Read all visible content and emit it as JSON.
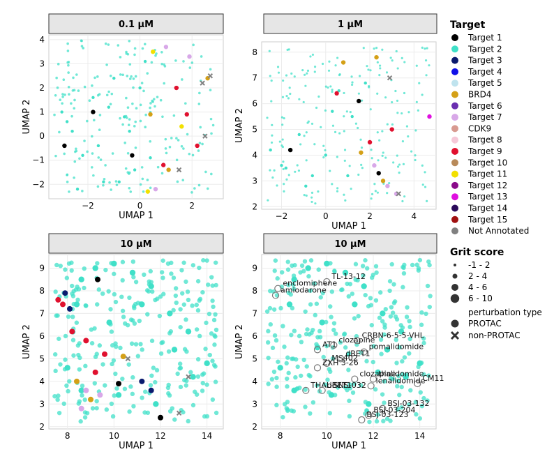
{
  "legend": {
    "target_title": "Target",
    "targets": [
      {
        "label": "Target 1",
        "color": "#000000"
      },
      {
        "label": "Target 2",
        "color": "#40E0C8"
      },
      {
        "label": "Target 3",
        "color": "#0A1A6E"
      },
      {
        "label": "Target 4",
        "color": "#1010E8"
      },
      {
        "label": "Target 5",
        "color": "#BFE3EE"
      },
      {
        "label": "BRD4",
        "color": "#D4A017"
      },
      {
        "label": "Target 6",
        "color": "#6A2FB0"
      },
      {
        "label": "Target 7",
        "color": "#D8A8E8"
      },
      {
        "label": "CDK9",
        "color": "#D89A90"
      },
      {
        "label": "Target 8",
        "color": "#F6C8D8"
      },
      {
        "label": "Target 9",
        "color": "#E0102E"
      },
      {
        "label": "Target 10",
        "color": "#B88A5A"
      },
      {
        "label": "Target 11",
        "color": "#F2E000"
      },
      {
        "label": "Target 12",
        "color": "#8A0A8A"
      },
      {
        "label": "Target 13",
        "color": "#E010E0"
      },
      {
        "label": "Target 14",
        "color": "#2A0A5A"
      },
      {
        "label": "Target 15",
        "color": "#A01010"
      },
      {
        "label": "Not Annotated",
        "color": "#808080"
      }
    ],
    "grit_title": "Grit score",
    "grit_levels": [
      "-1 - 2",
      "2 - 4",
      "4 - 6",
      "6 - 10"
    ],
    "ptype_title": "perturbation type",
    "ptypes": [
      "PROTAC",
      "non-PROTAC"
    ]
  },
  "chart_data": [
    {
      "type": "scatter",
      "title": "0.1 µM",
      "xlabel": "UMAP 1",
      "ylabel": "UMAP 2",
      "xlim": [
        -3.5,
        3.2
      ],
      "ylim": [
        -2.6,
        4.2
      ],
      "xticks": [
        -2,
        0,
        2
      ],
      "yticks": [
        -2,
        -1,
        0,
        1,
        2,
        3,
        4
      ],
      "series": [
        {
          "name": "Target 2",
          "x": [
            -3.0,
            -2.6,
            -2.2,
            -1.8,
            -1.4,
            -1.0,
            -0.6,
            -0.2,
            0.2,
            -2.4,
            -1.6,
            -0.8,
            0.0,
            -2.8,
            -1.2,
            -0.4,
            0.4
          ],
          "y": [
            1.0,
            0.2,
            -0.8,
            1.6,
            -1.9,
            2.4,
            0.8,
            -1.4,
            3.1,
            -2.2,
            -0.4,
            -1.9,
            2.0,
            0.6,
            1.2,
            0.2,
            -0.9
          ]
        },
        {
          "name": "Target 1",
          "x": [
            -1.8,
            -0.3,
            -2.9
          ],
          "y": [
            1.0,
            -0.8,
            -0.4
          ]
        },
        {
          "name": "Target 9",
          "x": [
            1.4,
            2.2,
            0.9,
            1.8
          ],
          "y": [
            2.0,
            -0.4,
            -1.2,
            0.9
          ]
        },
        {
          "name": "BRD4",
          "x": [
            0.4,
            2.6,
            1.1
          ],
          "y": [
            0.9,
            2.4,
            -1.4
          ]
        },
        {
          "name": "Target 7",
          "x": [
            1.0,
            1.9,
            0.6
          ],
          "y": [
            3.7,
            3.3,
            -2.2
          ]
        },
        {
          "name": "Target 11",
          "x": [
            0.3,
            1.6,
            0.5
          ],
          "y": [
            -2.3,
            0.4,
            3.5
          ]
        },
        {
          "name": "Not Annotated",
          "x": [
            2.4,
            2.5,
            2.7,
            1.5
          ],
          "y": [
            2.2,
            0.0,
            2.5,
            -1.4
          ]
        }
      ]
    },
    {
      "type": "scatter",
      "title": "1 µM",
      "xlabel": "UMAP 1",
      "ylabel": "UMAP 2",
      "xlim": [
        -2.9,
        5.0
      ],
      "ylim": [
        1.9,
        8.4
      ],
      "xticks": [
        -2,
        0,
        2,
        4
      ],
      "yticks": [
        2,
        3,
        4,
        5,
        6,
        7,
        8
      ],
      "series": [
        {
          "name": "Target 2",
          "x": [
            -2.5,
            -1.8,
            -1.2,
            -0.6,
            0.0,
            0.6,
            1.2,
            -2.0,
            -0.9,
            0.3,
            1.0,
            1.8
          ],
          "y": [
            4.2,
            3.5,
            4.8,
            3.2,
            4.0,
            6.5,
            5.5,
            3.6,
            2.8,
            5.7,
            3.2,
            6.8
          ],
          "size": "small"
        },
        {
          "name": "Target 1",
          "x": [
            -1.6,
            2.4,
            1.5
          ],
          "y": [
            4.2,
            3.3,
            6.1
          ]
        },
        {
          "name": "Target 13",
          "x": [
            4.7
          ],
          "y": [
            5.5
          ]
        },
        {
          "name": "BRD4",
          "x": [
            0.8,
            2.3,
            2.6,
            1.6
          ],
          "y": [
            7.6,
            7.8,
            3.0,
            4.1
          ]
        },
        {
          "name": "Target 7",
          "x": [
            2.8,
            3.2,
            2.2
          ],
          "y": [
            2.8,
            2.5,
            3.6
          ]
        },
        {
          "name": "Target 9",
          "x": [
            0.5,
            2.0,
            3.0
          ],
          "y": [
            6.4,
            4.5,
            5.0
          ]
        },
        {
          "name": "Not Annotated",
          "x": [
            3.3,
            2.9
          ],
          "y": [
            2.5,
            7.0
          ]
        }
      ]
    },
    {
      "type": "scatter",
      "title": "10 µM",
      "xlabel": "UMAP 1",
      "ylabel": "UMAP 2",
      "xlim": [
        7.2,
        14.7
      ],
      "ylim": [
        1.9,
        9.6
      ],
      "xticks": [
        8,
        10,
        12,
        14
      ],
      "yticks": [
        2,
        3,
        4,
        5,
        6,
        7,
        8,
        9
      ],
      "series": [
        {
          "name": "Target 2",
          "x": [
            8.6,
            9.2,
            10.0,
            10.8,
            11.6,
            12.4,
            13.2,
            14.0,
            8.4,
            9.8,
            11.2,
            12.6,
            8.0,
            8.6,
            10.2,
            11.8,
            13.4
          ],
          "y": [
            8.5,
            9.0,
            9.2,
            8.8,
            8.2,
            7.0,
            6.2,
            4.8,
            7.4,
            6.6,
            7.4,
            5.4,
            4.6,
            3.6,
            3.4,
            3.0,
            4.2
          ]
        },
        {
          "name": "Target 9",
          "x": [
            7.6,
            8.2,
            8.8,
            9.6,
            9.2,
            7.8
          ],
          "y": [
            7.6,
            6.2,
            5.8,
            5.2,
            4.4,
            7.4
          ]
        },
        {
          "name": "Target 3",
          "x": [
            7.9,
            8.1,
            11.2,
            11.6
          ],
          "y": [
            7.9,
            7.2,
            4.0,
            3.6
          ]
        },
        {
          "name": "BRD4",
          "x": [
            8.4,
            9.0,
            10.4
          ],
          "y": [
            4.0,
            3.2,
            5.1
          ]
        },
        {
          "name": "Target 7",
          "x": [
            8.6,
            9.4,
            8.8
          ],
          "y": [
            2.8,
            3.4,
            3.6
          ]
        },
        {
          "name": "Target 1",
          "x": [
            9.3,
            12.0,
            10.2
          ],
          "y": [
            8.5,
            2.4,
            3.9
          ]
        },
        {
          "name": "Not Annotated",
          "x": [
            13.2,
            10.6,
            12.8
          ],
          "y": [
            4.2,
            5.0,
            2.6
          ]
        }
      ]
    },
    {
      "type": "scatter",
      "title": "10 µM",
      "xlabel": "UMAP 1",
      "ylabel": "UMAP 2",
      "xlim": [
        7.2,
        14.7
      ],
      "ylim": [
        1.9,
        9.6
      ],
      "xticks": [
        8,
        10,
        12,
        14
      ],
      "yticks": [
        2,
        3,
        4,
        5,
        6,
        7,
        8,
        9
      ],
      "series": [
        {
          "name": "Target 2",
          "x": [
            8.6,
            9.2,
            10.0,
            10.8,
            11.6,
            12.4,
            13.2,
            14.0,
            8.4,
            9.8,
            11.2,
            12.6,
            8.0,
            8.6,
            10.2,
            11.8,
            13.4,
            9.6,
            12.2
          ],
          "y": [
            8.5,
            9.0,
            9.2,
            8.8,
            8.2,
            7.0,
            6.2,
            4.8,
            7.4,
            6.6,
            7.4,
            5.4,
            4.6,
            3.6,
            3.4,
            3.0,
            4.2,
            5.5,
            4.4
          ]
        }
      ],
      "annotations": [
        {
          "label": "TL-13-12",
          "x": 10.0,
          "y": 8.4
        },
        {
          "label": "enclomiphene",
          "x": 7.9,
          "y": 8.1
        },
        {
          "label": "amiodarone",
          "x": 7.8,
          "y": 7.8
        },
        {
          "label": "CRBN-6-5-5-VHL",
          "x": 11.3,
          "y": 5.8
        },
        {
          "label": "clozapine",
          "x": 10.3,
          "y": 5.6
        },
        {
          "label": "AT1",
          "x": 9.6,
          "y": 5.4
        },
        {
          "label": "pomalidomide",
          "x": 11.6,
          "y": 5.3
        },
        {
          "label": "MS402",
          "x": 10.0,
          "y": 4.8
        },
        {
          "label": "dBET1",
          "x": 10.6,
          "y": 5.0
        },
        {
          "label": "ZXH 3-26",
          "x": 9.6,
          "y": 4.6
        },
        {
          "label": "thalidomide",
          "x": 12.0,
          "y": 4.1
        },
        {
          "label": "THAL-SNS-032",
          "x": 9.1,
          "y": 3.6
        },
        {
          "label": "clozapine",
          "x": 11.2,
          "y": 4.1
        },
        {
          "label": "CM11",
          "x": 13.9,
          "y": 3.9
        },
        {
          "label": "lenalidomide",
          "x": 11.9,
          "y": 3.8
        },
        {
          "label": "dBET1",
          "x": 9.8,
          "y": 3.6
        },
        {
          "label": "BSJ-03-132",
          "x": 12.4,
          "y": 2.8
        },
        {
          "label": "BSJ-03-204",
          "x": 11.8,
          "y": 2.5
        },
        {
          "label": "BSJ-03-123",
          "x": 11.5,
          "y": 2.3
        }
      ]
    }
  ]
}
